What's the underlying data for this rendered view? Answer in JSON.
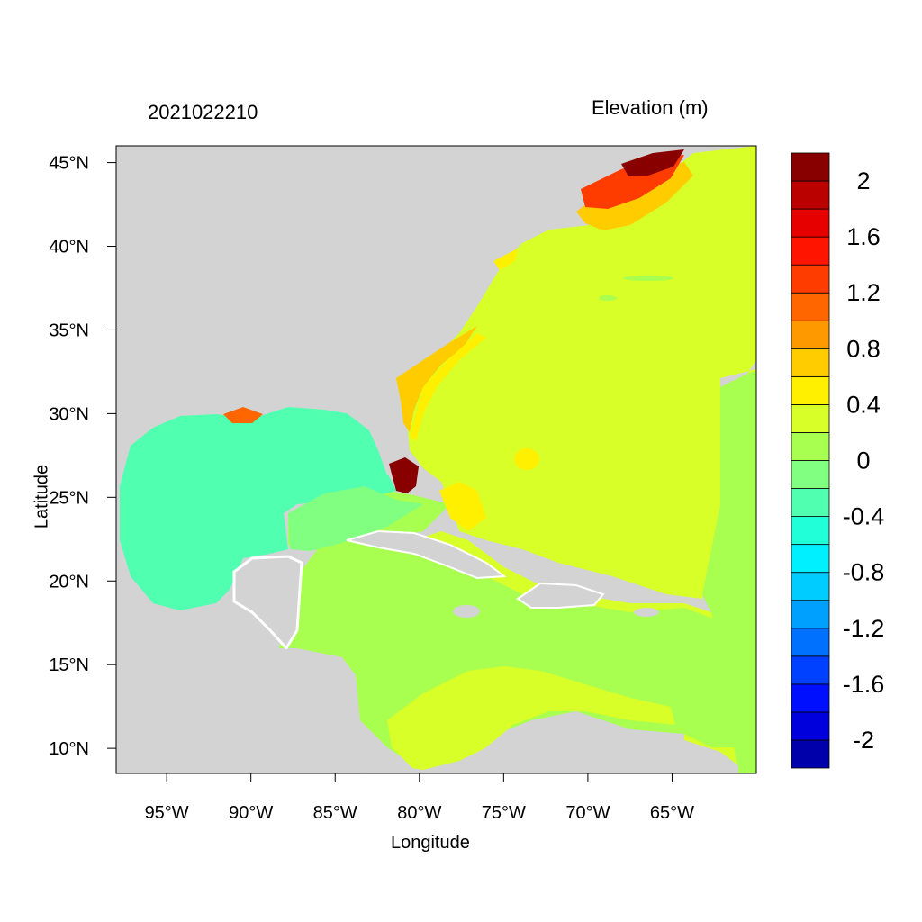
{
  "map": {
    "date_label": "2021022210",
    "variable_label": "Elevation (m)",
    "xlabel": "Longitude",
    "ylabel": "Latitude",
    "lon_range": [
      -98,
      -60
    ],
    "lat_range": [
      8.5,
      46
    ],
    "lon_ticks": [
      {
        "value": -95,
        "label": "95°W"
      },
      {
        "value": -90,
        "label": "90°W"
      },
      {
        "value": -85,
        "label": "85°W"
      },
      {
        "value": -80,
        "label": "80°W"
      },
      {
        "value": -75,
        "label": "75°W"
      },
      {
        "value": -70,
        "label": "70°W"
      },
      {
        "value": -65,
        "label": "65°W"
      }
    ],
    "lat_ticks": [
      {
        "value": 45,
        "label": "45°N"
      },
      {
        "value": 40,
        "label": "40°N"
      },
      {
        "value": 35,
        "label": "35°N"
      },
      {
        "value": 30,
        "label": "30°N"
      },
      {
        "value": 25,
        "label": "25°N"
      },
      {
        "value": 20,
        "label": "20°N"
      },
      {
        "value": 15,
        "label": "15°N"
      },
      {
        "value": 10,
        "label": "10°N"
      }
    ],
    "land_color": "#d3d3d3"
  },
  "colorbar": {
    "colors": [
      "#0000aa",
      "#0000dd",
      "#0010ff",
      "#0040ff",
      "#0070ff",
      "#00a0ff",
      "#00ccff",
      "#00f0ff",
      "#20ffd8",
      "#50ffb0",
      "#80ff80",
      "#a8ff50",
      "#d8ff28",
      "#fff000",
      "#ffcc00",
      "#ff9900",
      "#ff6600",
      "#ff3c00",
      "#ff1400",
      "#e60000",
      "#bb0000",
      "#880000"
    ],
    "labels": [
      "-2",
      "-1.6",
      "-1.2",
      "-0.8",
      "-0.4",
      "0",
      "0.4",
      "0.8",
      "1.2",
      "1.6",
      "2"
    ]
  }
}
